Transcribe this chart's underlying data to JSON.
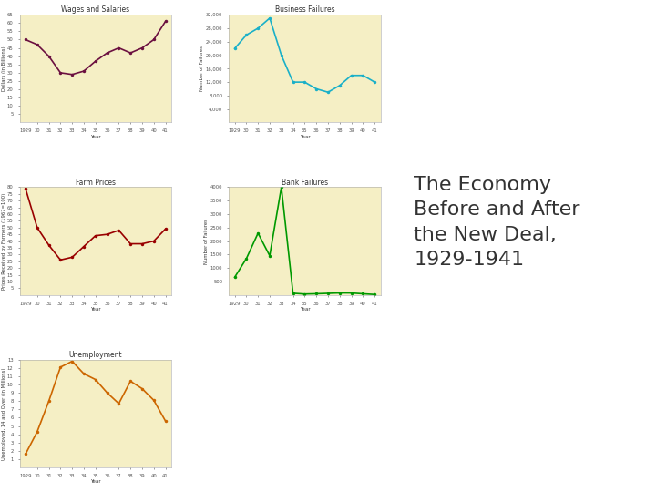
{
  "years_idx": [
    0,
    1,
    2,
    3,
    4,
    5,
    6,
    7,
    8,
    9,
    10,
    11,
    12
  ],
  "year_labels": [
    "1929",
    "30",
    "31",
    "32",
    "33",
    "34",
    "35",
    "36",
    "37",
    "38",
    "39",
    "40",
    "41"
  ],
  "wages": [
    50,
    47,
    40,
    30,
    29,
    31,
    37,
    42,
    45,
    42,
    45,
    50,
    61
  ],
  "business_failures": [
    22000,
    26000,
    28000,
    31000,
    20000,
    12000,
    12000,
    10000,
    9000,
    11000,
    14000,
    14000,
    12000
  ],
  "farm_prices": [
    79,
    50,
    37,
    26,
    28,
    36,
    44,
    45,
    48,
    38,
    38,
    40,
    49
  ],
  "bank_failures": [
    659,
    1350,
    2294,
    1456,
    4000,
    62,
    34,
    44,
    59,
    74,
    72,
    43,
    17
  ],
  "unemployment": [
    1.6,
    4.3,
    8.0,
    12.1,
    12.8,
    11.3,
    10.6,
    9.0,
    7.7,
    10.4,
    9.5,
    8.1,
    5.6
  ],
  "bg_color": "#f5efc5",
  "fig_bg": "#ffffff",
  "wages_color": "#6b1040",
  "business_color": "#1ab0c8",
  "farm_color": "#990000",
  "bank_color": "#009900",
  "unemployment_color": "#cc6600",
  "title_line1": "The Economy",
  "title_line2": "Before and After",
  "title_line3": "the New Deal,",
  "title_line4": "1929-1941",
  "title_fontsize": 16,
  "title_color": "#333333"
}
